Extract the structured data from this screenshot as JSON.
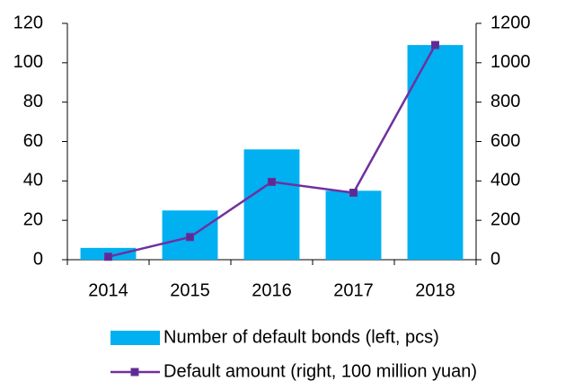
{
  "chart_data": {
    "type": "bar",
    "categories": [
      "2014",
      "2015",
      "2016",
      "2017",
      "2018"
    ],
    "series": [
      {
        "name": "Number of default bonds (left, pcs)",
        "type": "bar",
        "axis": "y",
        "color": "#00b0f0",
        "values": [
          6,
          25,
          56,
          35,
          109
        ]
      },
      {
        "name": "Default amount (right, 100 million yuan)",
        "type": "line",
        "axis": "y2",
        "color": "#7030a0",
        "values": [
          15,
          115,
          395,
          340,
          1090
        ]
      }
    ],
    "ylim": [
      0,
      120
    ],
    "yticks": [
      0,
      20,
      40,
      60,
      80,
      100,
      120
    ],
    "y2lim": [
      0,
      1200
    ],
    "y2ticks": [
      0,
      200,
      400,
      600,
      800,
      1000,
      1200
    ],
    "grid": false
  }
}
